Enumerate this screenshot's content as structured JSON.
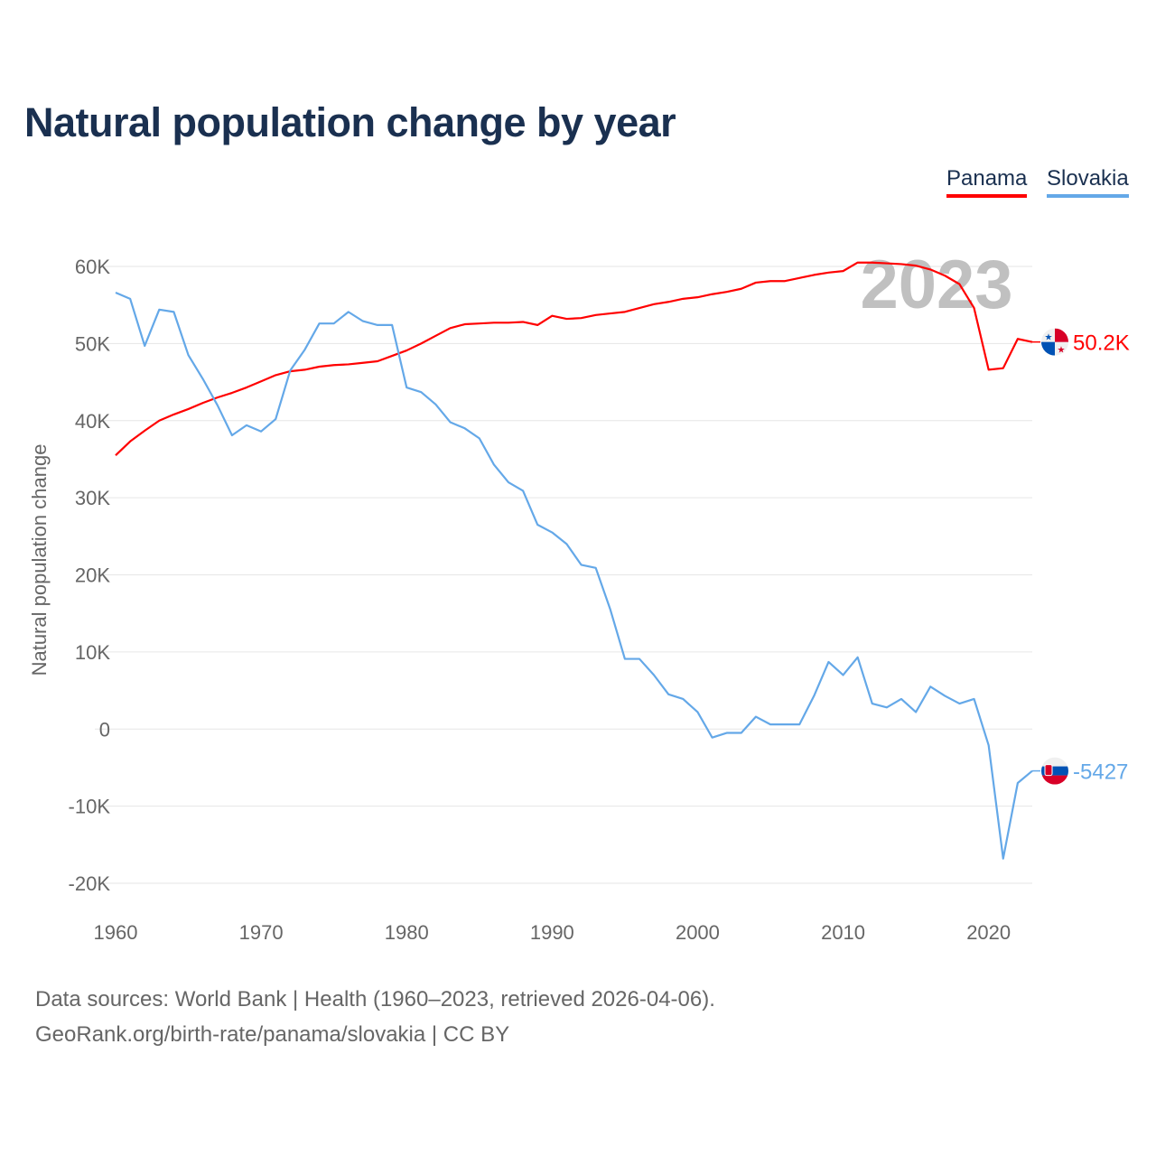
{
  "title": "Natural population change by year",
  "legend": [
    "Panama",
    "Slovakia"
  ],
  "source_line1": "Data sources: World Bank | Health (1960–2023, retrieved 2026-04-06).",
  "source_line2": "GeoRank.org/birth-rate/panama/slovakia | CC BY",
  "chart_data": {
    "type": "line",
    "title": "Natural population change by year",
    "xlabel": "",
    "ylabel": "Natural population change",
    "xlim": [
      1960,
      2023
    ],
    "ylim": [
      -20000,
      60000
    ],
    "x_ticks": [
      1960,
      1970,
      1980,
      1990,
      2000,
      2010,
      2020
    ],
    "y_ticks": [
      -20000,
      -10000,
      0,
      10000,
      20000,
      30000,
      40000,
      50000,
      60000
    ],
    "y_tick_labels": [
      "-20K",
      "-10K",
      "0",
      "10K",
      "20K",
      "30K",
      "40K",
      "50K",
      "60K"
    ],
    "grid": true,
    "legend_position": "top-right",
    "year_label": "2023",
    "x": [
      1960,
      1961,
      1962,
      1963,
      1964,
      1965,
      1966,
      1967,
      1968,
      1969,
      1970,
      1971,
      1972,
      1973,
      1974,
      1975,
      1976,
      1977,
      1978,
      1979,
      1980,
      1981,
      1982,
      1983,
      1984,
      1985,
      1986,
      1987,
      1988,
      1989,
      1990,
      1991,
      1992,
      1993,
      1994,
      1995,
      1996,
      1997,
      1998,
      1999,
      2000,
      2001,
      2002,
      2003,
      2004,
      2005,
      2006,
      2007,
      2008,
      2009,
      2010,
      2011,
      2012,
      2013,
      2014,
      2015,
      2016,
      2017,
      2018,
      2019,
      2020,
      2021,
      2022,
      2023
    ],
    "series": [
      {
        "name": "Panama",
        "color": "#ff0000",
        "end_label": "50.2K",
        "values": [
          35500,
          37300,
          38700,
          40000,
          40800,
          41500,
          42300,
          43000,
          43600,
          44300,
          45100,
          45900,
          46400,
          46600,
          47000,
          47200,
          47300,
          47500,
          47700,
          48400,
          49100,
          50000,
          51000,
          52000,
          52500,
          52600,
          52700,
          52700,
          52800,
          52400,
          53600,
          53200,
          53300,
          53700,
          53900,
          54100,
          54600,
          55100,
          55400,
          55800,
          56000,
          56400,
          56700,
          57100,
          57900,
          58100,
          58100,
          58500,
          58900,
          59200,
          59400,
          60500,
          60500,
          60400,
          60300,
          60100,
          59600,
          58800,
          57700,
          54600,
          46600,
          46800,
          50600,
          50200
        ]
      },
      {
        "name": "Slovakia",
        "color": "#64a8e8",
        "end_label": "-5427",
        "values": [
          56600,
          55800,
          49700,
          54400,
          54100,
          48500,
          45400,
          42000,
          38100,
          39400,
          38600,
          40200,
          46500,
          49200,
          52600,
          52600,
          54100,
          52900,
          52400,
          52400,
          44300,
          43700,
          42100,
          39800,
          39000,
          37700,
          34300,
          32000,
          30900,
          26500,
          25500,
          24000,
          21300,
          20900,
          15500,
          9100,
          9100,
          7000,
          4500,
          3900,
          2200,
          -1100,
          -500,
          -500,
          1600,
          600,
          600,
          600,
          4300,
          8700,
          7000,
          9300,
          3300,
          2800,
          3900,
          2200,
          5500,
          4300,
          3300,
          3900,
          -2100,
          -16800,
          -7000,
          -5427
        ]
      }
    ]
  }
}
